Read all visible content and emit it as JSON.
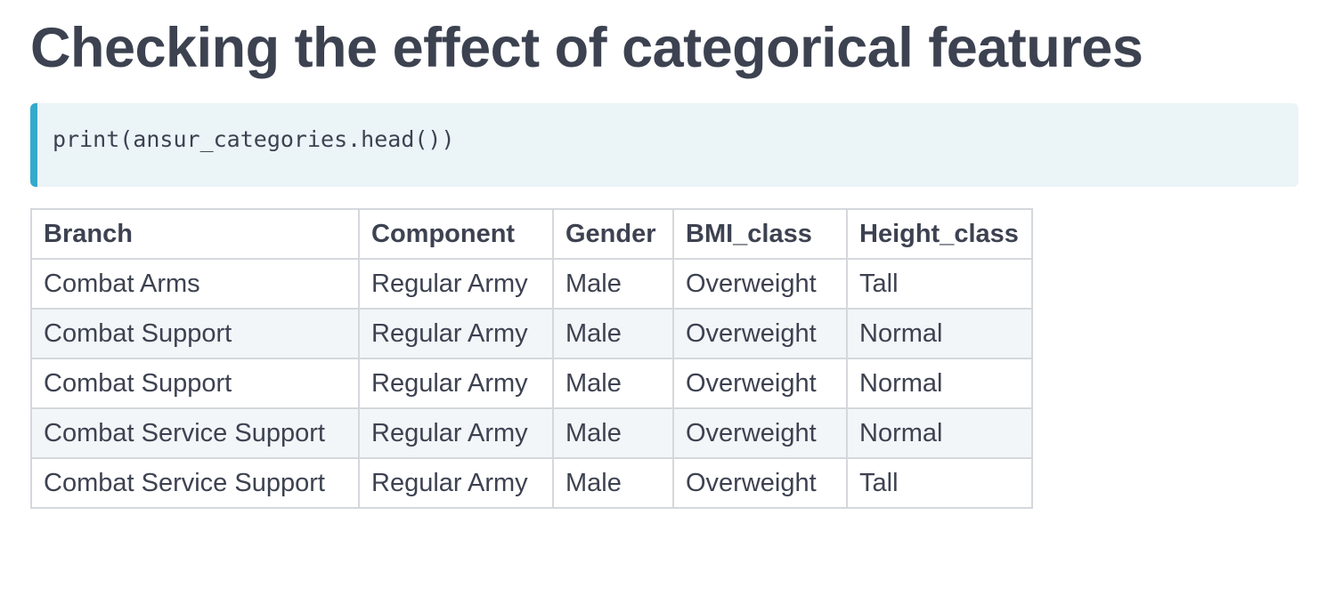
{
  "page": {
    "title": "Checking the effect of categorical features"
  },
  "code": {
    "text": "print(ansur_categories.head())"
  },
  "table": {
    "columns": [
      "Branch",
      "Component",
      "Gender",
      "BMI_class",
      "Height_class"
    ],
    "rows": [
      [
        "Combat Arms",
        "Regular Army",
        "Male",
        "Overweight",
        "Tall"
      ],
      [
        "Combat Support",
        "Regular Army",
        "Male",
        "Overweight",
        "Normal"
      ],
      [
        "Combat Support",
        "Regular Army",
        "Male",
        "Overweight",
        "Normal"
      ],
      [
        "Combat Service Support",
        "Regular Army",
        "Male",
        "Overweight",
        "Normal"
      ],
      [
        "Combat Service Support",
        "Regular Army",
        "Male",
        "Overweight",
        "Tall"
      ]
    ]
  },
  "colors": {
    "text": "#3d4251",
    "code_background": "#ebf4f7",
    "code_accent": "#33aacc",
    "table_border": "#d4d8dd"
  }
}
